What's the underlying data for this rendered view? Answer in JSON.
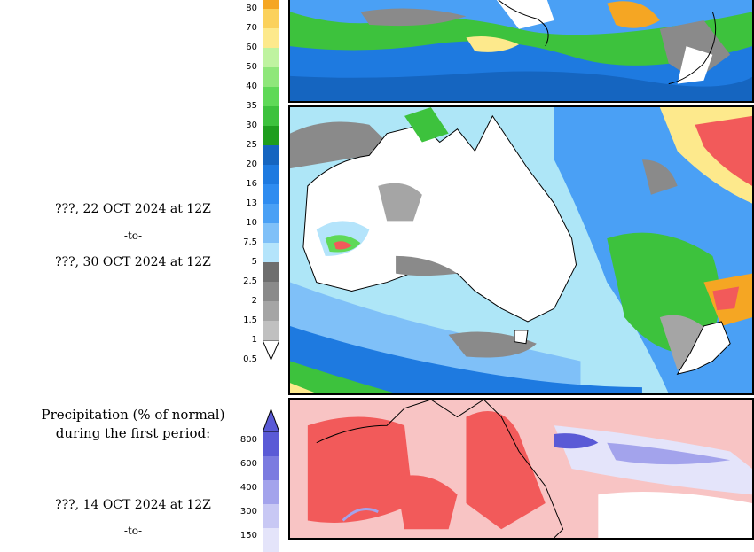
{
  "period2": {
    "start": "???, 22 OCT 2024 at 12Z",
    "sep": "-to-",
    "end": "???, 30 OCT 2024 at 12Z"
  },
  "anomaly_section": {
    "heading_line1": "Precipitation (% of normal)",
    "heading_line2": "during the first period:",
    "start": "???, 14 OCT 2024 at 12Z",
    "sep": "-to-"
  },
  "precip_scale": {
    "labels": [
      "80",
      "70",
      "60",
      "50",
      "40",
      "35",
      "30",
      "25",
      "20",
      "16",
      "13",
      "10",
      "7.5",
      "5",
      "2.5",
      "2",
      "1.5",
      "1",
      "0.5"
    ],
    "colors": [
      "#f5a623",
      "#fbd15c",
      "#fde98c",
      "#bff3a0",
      "#8fe77a",
      "#5fd957",
      "#3dc23d",
      "#1e9e1e",
      "#1565c0",
      "#1e7ae0",
      "#2f8cf0",
      "#4aa0f5",
      "#7fc0f8",
      "#b4e4fb",
      "#6e6e6e",
      "#8a8a8a",
      "#a5a5a5",
      "#c0c0c0",
      "#ffffff"
    ]
  },
  "anomaly_scale": {
    "labels": [
      "800",
      "600",
      "400",
      "300",
      "150"
    ],
    "colors": [
      "#5a5ad6",
      "#7b7be0",
      "#a3a3ec",
      "#c8c8f4",
      "#e4e4fa"
    ]
  },
  "colors": {
    "land_white": "#ffffff",
    "ocean_light": "#aee6f7",
    "ocean_blue": "#4da6f0",
    "green": "#3dc23d",
    "dry_red": "#f25a5a",
    "dry_pink": "#f8c4c4"
  }
}
